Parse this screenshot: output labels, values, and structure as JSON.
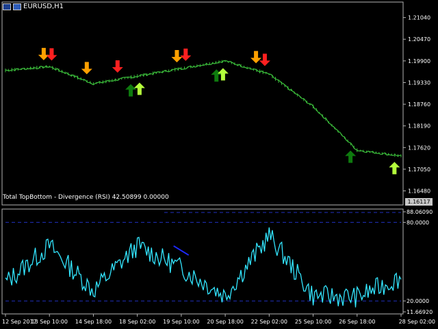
{
  "window": {
    "title": "EURUSD,H1",
    "icons": [
      "chart-window-icon",
      "properties-icon"
    ]
  },
  "indicator": {
    "label": "Total TopBottom - Divergence (RSI) 42.50899 0.00000"
  },
  "current_price": "1.16117",
  "colors": {
    "background": "#000000",
    "price_line": "#3cc03c",
    "indicator_line": "#33e6ff",
    "axis": "#b4b4b4",
    "dash_level": "#2030c0",
    "divergence_line": "#1e2aff",
    "arrow_sell_orange": "#ffa000",
    "arrow_sell_red": "#ff2020",
    "arrow_buy_dark": "#0e7a0e",
    "arrow_buy_light": "#b4ff3c"
  },
  "chart_data": [
    {
      "type": "line",
      "symbol": "EURUSD",
      "timeframe": "H1",
      "x": [
        "12 Sep 2017",
        "13 Sep 10:00",
        "14 Sep 18:00",
        "18 Sep 02:00",
        "19 Sep 10:00",
        "20 Sep 18:00",
        "22 Sep 02:00",
        "25 Sep 10:00",
        "26 Sep 18:00",
        "28 Sep 02:00"
      ],
      "y": [
        1.1965,
        1.1975,
        1.193,
        1.195,
        1.197,
        1.199,
        1.1955,
        1.187,
        1.1755,
        1.174
      ],
      "y_ticks": [
        "1.21040",
        "1.20470",
        "1.19900",
        "1.19330",
        "1.18760",
        "1.18190",
        "1.17620",
        "1.17050",
        "1.16480"
      ],
      "ylim": [
        1.162,
        1.2125
      ],
      "signals": [
        {
          "type": "sell",
          "color": "orange",
          "time": "13 Sep 02:00"
        },
        {
          "type": "sell",
          "color": "red",
          "time": "13 Sep 04:00"
        },
        {
          "type": "sell",
          "color": "orange",
          "time": "14 Sep 12:00"
        },
        {
          "type": "sell",
          "color": "red",
          "time": "15 Sep 12:00"
        },
        {
          "type": "buy",
          "color": "dark",
          "time": "18 Sep 00:00"
        },
        {
          "type": "buy",
          "color": "light",
          "time": "18 Sep 04:00"
        },
        {
          "type": "sell",
          "color": "orange",
          "time": "19 Sep 10:00"
        },
        {
          "type": "sell",
          "color": "red",
          "time": "19 Sep 14:00"
        },
        {
          "type": "buy",
          "color": "dark",
          "time": "20 Sep 16:00"
        },
        {
          "type": "buy",
          "color": "light",
          "time": "20 Sep 18:00"
        },
        {
          "type": "sell",
          "color": "orange",
          "time": "22 Sep 02:00"
        },
        {
          "type": "sell",
          "color": "red",
          "time": "22 Sep 04:00"
        },
        {
          "type": "buy",
          "color": "dark",
          "time": "26 Sep 22:00"
        },
        {
          "type": "buy",
          "color": "light",
          "time": "28 Sep 00:00"
        }
      ],
      "grid": false
    },
    {
      "type": "line",
      "indicator": "RSI",
      "x": [
        "12 Sep 2017",
        "13 Sep 10:00",
        "14 Sep 18:00",
        "18 Sep 02:00",
        "19 Sep 10:00",
        "20 Sep 18:00",
        "22 Sep 02:00",
        "25 Sep 10:00",
        "26 Sep 18:00",
        "28 Sep 02:00"
      ],
      "y": [
        34,
        62,
        28,
        62,
        45,
        24,
        70,
        24,
        23,
        38
      ],
      "y_ticks": [
        "88.06090",
        "80.0000",
        "20.0000",
        "11.66920"
      ],
      "ylim": [
        11.6692,
        88.0609
      ],
      "levels": [
        80,
        20
      ],
      "grid": false
    }
  ]
}
